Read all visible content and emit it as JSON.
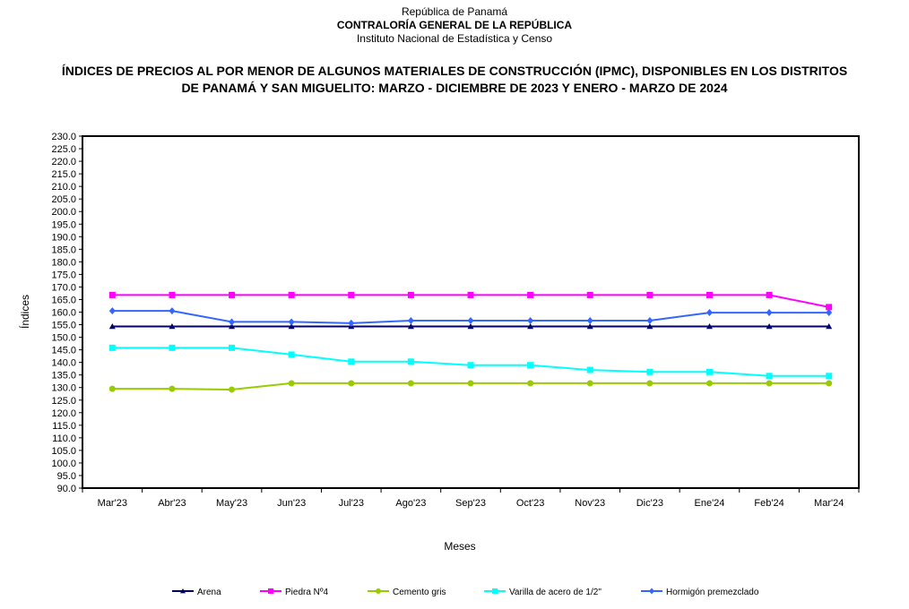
{
  "header": {
    "line1": "República de Panamá",
    "line2": "CONTRALORÍA GENERAL DE LA REPÚBLICA",
    "line3": "Instituto Nacional de Estadística y Censo"
  },
  "chart_data": {
    "type": "line",
    "title_line1": "ÍNDICES DE PRECIOS AL POR MENOR DE ALGUNOS MATERIALES DE CONSTRUCCIÓN  (IPMC), DISPONIBLES EN LOS DISTRITOS",
    "title_line2": "DE PANAMÁ Y SAN MIGUELITO: MARZO - DICIEMBRE DE 2023 Y ENERO - MARZO DE 2024",
    "xlabel": "Meses",
    "ylabel": "Índices",
    "ylim": [
      90,
      230
    ],
    "ytick_step": 5,
    "grid": false,
    "legend_position": "bottom",
    "categories": [
      "Mar'23",
      "Abr'23",
      "May'23",
      "Jun'23",
      "Jul'23",
      "Ago'23",
      "Sep'23",
      "Oct'23",
      "Nov'23",
      "Dic'23",
      "Ene'24",
      "Feb'24",
      "Mar'24"
    ],
    "series": [
      {
        "name": "Arena",
        "color": "#000066",
        "marker": "triangle",
        "values": [
          154.3,
          154.3,
          154.3,
          154.3,
          154.3,
          154.3,
          154.3,
          154.3,
          154.3,
          154.3,
          154.3,
          154.3,
          154.3
        ]
      },
      {
        "name": "Piedra Nº4",
        "color": "#ff00ff",
        "marker": "square",
        "values": [
          166.8,
          166.8,
          166.8,
          166.8,
          166.8,
          166.8,
          166.8,
          166.8,
          166.8,
          166.8,
          166.8,
          166.8,
          162.0
        ]
      },
      {
        "name": "Cemento gris",
        "color": "#99cc00",
        "marker": "circle",
        "values": [
          129.5,
          129.5,
          129.2,
          131.7,
          131.7,
          131.7,
          131.7,
          131.7,
          131.7,
          131.7,
          131.7,
          131.7,
          131.7
        ]
      },
      {
        "name": "Varilla de acero de 1/2\"",
        "color": "#00ffff",
        "marker": "square",
        "values": [
          145.8,
          145.8,
          145.8,
          143.1,
          140.3,
          140.3,
          138.9,
          138.9,
          137.0,
          136.2,
          136.2,
          134.6,
          134.6
        ]
      },
      {
        "name": "Hormigón premezclado",
        "color": "#3366ff",
        "marker": "diamond",
        "values": [
          160.5,
          160.5,
          156.1,
          156.1,
          155.6,
          156.6,
          156.6,
          156.6,
          156.6,
          156.6,
          159.8,
          159.8,
          159.8
        ]
      }
    ]
  }
}
